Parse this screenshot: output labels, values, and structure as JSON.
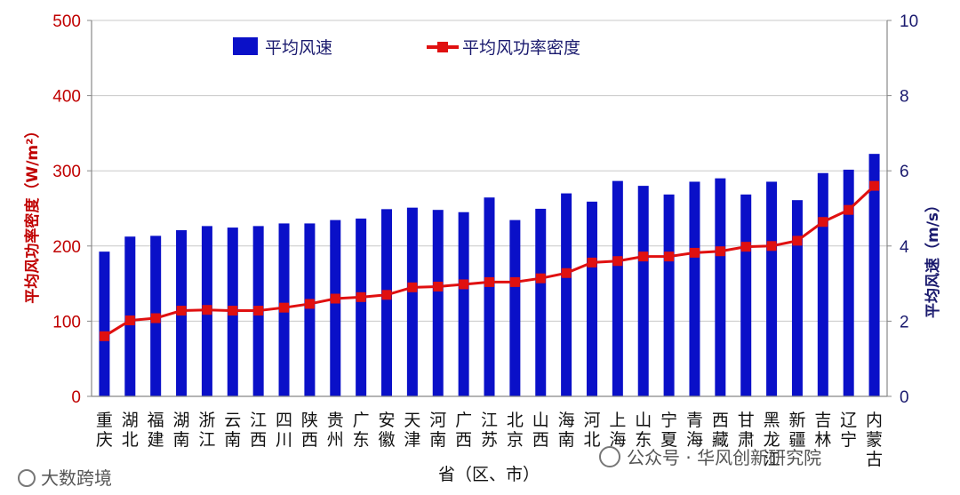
{
  "chart_data": {
    "type": "bar",
    "categories": [
      [
        "重",
        "庆"
      ],
      [
        "湖",
        "北"
      ],
      [
        "福",
        "建"
      ],
      [
        "湖",
        "南"
      ],
      [
        "浙",
        "江"
      ],
      [
        "云",
        "南"
      ],
      [
        "江",
        "西"
      ],
      [
        "四",
        "川"
      ],
      [
        "陕",
        "西"
      ],
      [
        "贵",
        "州"
      ],
      [
        "广",
        "东"
      ],
      [
        "安",
        "徽"
      ],
      [
        "天",
        "津"
      ],
      [
        "河",
        "南"
      ],
      [
        "广",
        "西"
      ],
      [
        "江",
        "苏"
      ],
      [
        "北",
        "京"
      ],
      [
        "山",
        "西"
      ],
      [
        "海",
        "南"
      ],
      [
        "河",
        "北"
      ],
      [
        "上",
        "海"
      ],
      [
        "山",
        "东"
      ],
      [
        "宁",
        "夏"
      ],
      [
        "青",
        "海"
      ],
      [
        "西",
        "藏"
      ],
      [
        "甘",
        "肃"
      ],
      [
        "黑",
        "龙",
        "江"
      ],
      [
        "新",
        "疆"
      ],
      [
        "吉",
        "林"
      ],
      [
        "辽",
        "宁"
      ],
      [
        "内",
        "蒙",
        "古"
      ]
    ],
    "series": [
      {
        "name": "平均风速",
        "kind": "bar",
        "axis": "right",
        "color": "#0a10c8",
        "values": [
          3.85,
          4.25,
          4.27,
          4.42,
          4.53,
          4.49,
          4.53,
          4.6,
          4.6,
          4.69,
          4.73,
          4.98,
          5.02,
          4.96,
          4.9,
          5.29,
          4.69,
          4.99,
          5.4,
          5.18,
          5.73,
          5.6,
          5.37,
          5.71,
          5.8,
          5.37,
          5.71,
          5.22,
          5.94,
          6.03,
          6.45
        ]
      },
      {
        "name": "平均风功率密度",
        "kind": "line",
        "axis": "left",
        "color": "#e01010",
        "values": [
          80,
          101,
          104,
          114,
          115,
          114,
          114,
          118,
          123,
          130,
          132,
          135,
          145,
          146,
          149,
          152,
          152,
          157,
          164,
          178,
          180,
          186,
          186,
          191,
          193,
          199,
          200,
          207,
          232,
          248,
          280
        ]
      }
    ],
    "xlabel": "省（区、市）",
    "ylabel_left": "平均风功率密度（W/m²）",
    "ylabel_right": "平均风速（m/s）",
    "ylim_left": [
      0,
      500
    ],
    "ylim_right": [
      0,
      10
    ],
    "yticks_left": [
      "0",
      "100",
      "200",
      "300",
      "400",
      "500"
    ],
    "yticks_right": [
      "0",
      "2",
      "4",
      "6",
      "8",
      "10"
    ],
    "grid": true,
    "legend_position": "top-left"
  },
  "watermarks": {
    "bottom_left": "大数跨境",
    "bottom_right": "公众号 · 华风创新研究院"
  }
}
